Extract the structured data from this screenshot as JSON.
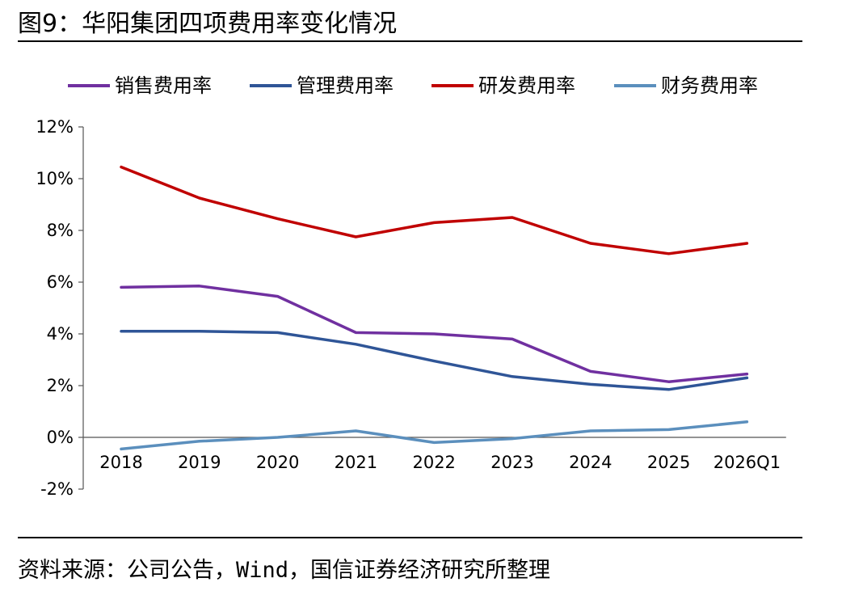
{
  "figure": {
    "title": "图9：华阳集团四项费用率变化情况",
    "source": "资料来源：公司公告，Wind，国信证券经济研究所整理"
  },
  "chart_data": {
    "type": "line",
    "categories": [
      "2018",
      "2019",
      "2020",
      "2021",
      "2022",
      "2023",
      "2024",
      "2025",
      "2026Q1"
    ],
    "series": [
      {
        "name": "销售费用率",
        "color": "#7030a0",
        "values": [
          5.8,
          5.85,
          5.45,
          4.05,
          4.0,
          3.8,
          2.55,
          2.15,
          2.45
        ]
      },
      {
        "name": "管理费用率",
        "color": "#2f5597",
        "values": [
          4.1,
          4.1,
          4.05,
          3.6,
          2.95,
          2.35,
          2.05,
          1.85,
          2.3
        ]
      },
      {
        "name": "研发费用率",
        "color": "#c00000",
        "values": [
          10.45,
          9.25,
          8.45,
          7.75,
          8.3,
          8.5,
          7.5,
          7.1,
          7.5
        ]
      },
      {
        "name": "财务费用率",
        "color": "#5b8fbd",
        "values": [
          -0.45,
          -0.15,
          0.0,
          0.25,
          -0.2,
          -0.05,
          0.25,
          0.3,
          0.6
        ]
      }
    ],
    "y_ticks": [
      "12%",
      "10%",
      "8%",
      "6%",
      "4%",
      "2%",
      "0%",
      "-2%"
    ],
    "y_tick_values": [
      12,
      10,
      8,
      6,
      4,
      2,
      0,
      -2
    ],
    "ylim": [
      -2,
      12
    ],
    "grid": false,
    "legend_position": "top"
  }
}
